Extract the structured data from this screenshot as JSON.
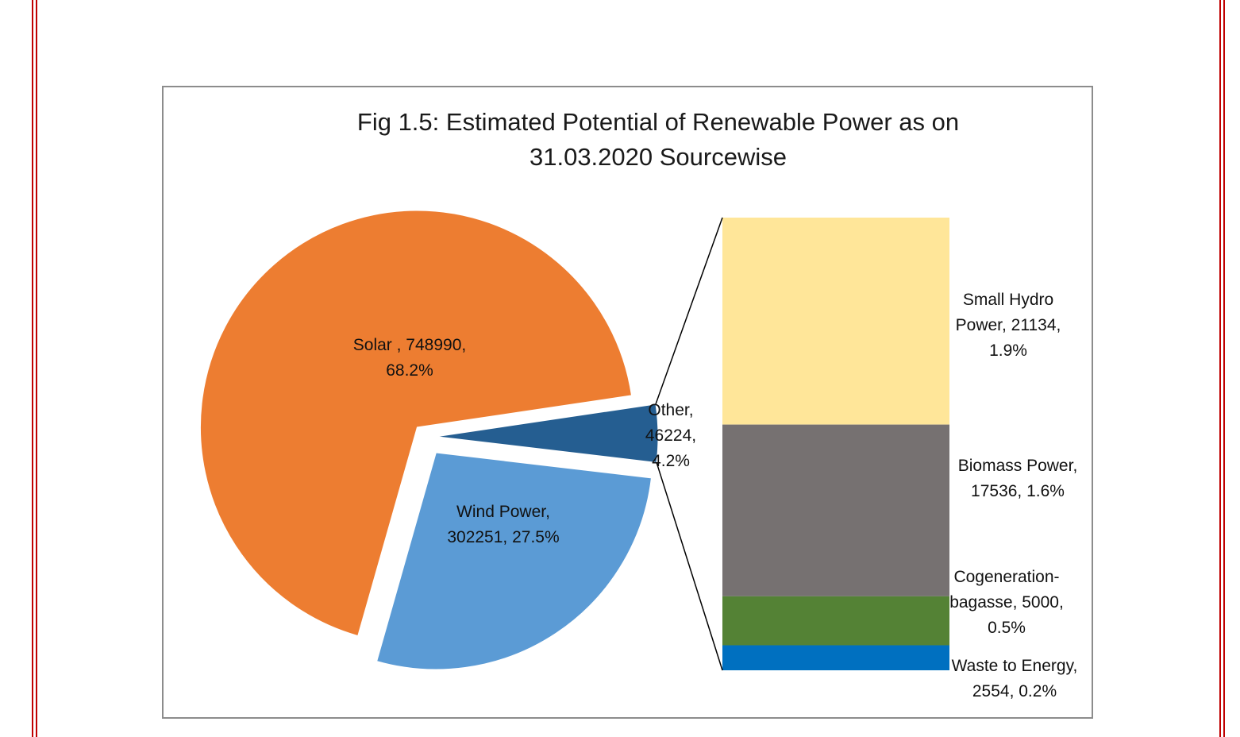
{
  "chart_data": {
    "type": "pie",
    "variant": "bar-of-pie",
    "title_lines": [
      "Fig 1.5: Estimated Potential of Renewable Power as on",
      "31.03.2020 Sourcewise"
    ],
    "pie": [
      {
        "name": "Solar",
        "value": 748990,
        "percent": "68.2%",
        "color": "#ed7d31",
        "label_lines": [
          "Solar , 748990,",
          "68.2%"
        ]
      },
      {
        "name": "Wind Power",
        "value": 302251,
        "percent": "27.5%",
        "color": "#5b9bd5",
        "label_lines": [
          "Wind Power,",
          "302251, 27.5%"
        ]
      },
      {
        "name": "Other",
        "value": 46224,
        "percent": "4.2%",
        "color": "#255e91",
        "label_lines": [
          "Other,",
          "46224,",
          "4.2%"
        ]
      }
    ],
    "breakdown": [
      {
        "name": "Small Hydro Power",
        "value": 21134,
        "percent": "1.9%",
        "color": "#ffe699",
        "label_lines": [
          "Small Hydro",
          "Power, 21134,",
          "1.9%"
        ]
      },
      {
        "name": "Biomass Power",
        "value": 17536,
        "percent": "1.6%",
        "color": "#767171",
        "label_lines": [
          "Biomass Power,",
          "17536, 1.6%"
        ]
      },
      {
        "name": "Cogeneration-bagasse",
        "value": 5000,
        "percent": "0.5%",
        "color": "#548235",
        "label_lines": [
          "Cogeneration-",
          "bagasse, 5000,",
          "0.5%"
        ]
      },
      {
        "name": "Waste to Energy",
        "value": 2554,
        "percent": "0.2%",
        "color": "#0070c0",
        "label_lines": [
          "Waste to Energy,",
          "2554, 0.2%"
        ]
      }
    ]
  }
}
